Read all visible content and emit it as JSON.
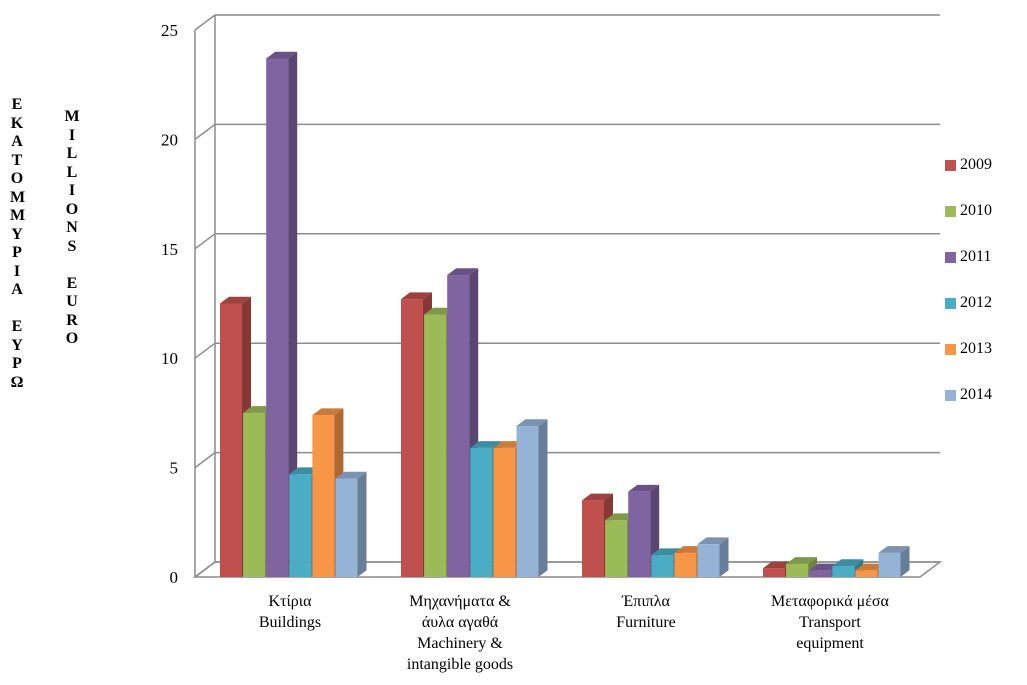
{
  "chart_data": {
    "type": "bar",
    "title": "",
    "ylabel_greek": [
      "Ε",
      "Κ",
      "Α",
      "Τ",
      "Ο",
      "Μ",
      "Μ",
      "Υ",
      "Ρ",
      "Ι",
      "Α",
      "",
      "Ε",
      "Υ",
      "Ρ",
      "Ω"
    ],
    "ylabel_english": [
      "M",
      "I",
      "L",
      "L",
      "I",
      "O",
      "N",
      "S",
      "",
      "E",
      "U",
      "R",
      "O"
    ],
    "ylim": [
      0,
      25
    ],
    "yticks": [
      "0",
      "5",
      "10",
      "15",
      "20",
      "25"
    ],
    "categories": [
      [
        "Κτίρια",
        "Buildings"
      ],
      [
        "Μηχανήματα &",
        "άυλα αγαθά",
        "Machinery &",
        "intangible goods"
      ],
      [
        "Έπιπλα",
        "Furniture"
      ],
      [
        "Μεταφορικά μέσα",
        "Transport",
        "equipment"
      ]
    ],
    "series": [
      {
        "name": "2009",
        "color": "#c0504d",
        "values": [
          12.5,
          12.7,
          3.5,
          0.4
        ]
      },
      {
        "name": "2010",
        "color": "#9bbb59",
        "values": [
          7.5,
          12.0,
          2.6,
          0.6
        ]
      },
      {
        "name": "2011",
        "color": "#8064a2",
        "values": [
          23.7,
          13.8,
          3.9,
          0.3
        ]
      },
      {
        "name": "2012",
        "color": "#4bacc6",
        "values": [
          4.7,
          5.9,
          1.0,
          0.5
        ]
      },
      {
        "name": "2013",
        "color": "#f79646",
        "values": [
          7.4,
          5.9,
          1.1,
          0.3
        ]
      },
      {
        "name": "2014",
        "color": "#95b3d7",
        "values": [
          4.5,
          6.9,
          1.5,
          1.1
        ]
      }
    ],
    "grid": true,
    "legend_position": "right"
  }
}
